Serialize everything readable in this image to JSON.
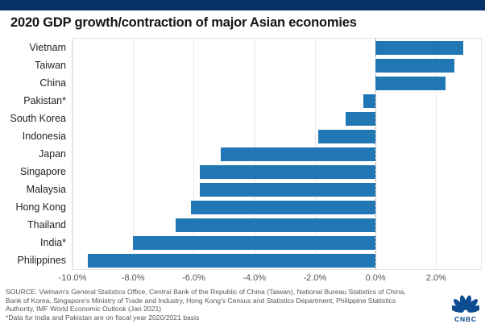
{
  "banner": {
    "color": "#053166"
  },
  "header": {
    "title": "2020 GDP growth/contraction of major Asian economies"
  },
  "chart_data": {
    "type": "bar",
    "orientation": "horizontal",
    "title": "2020 GDP growth/contraction of major Asian economies",
    "categories": [
      "Vietnam",
      "Taiwan",
      "China",
      "Pakistan*",
      "South Korea",
      "Indonesia",
      "Japan",
      "Singapore",
      "Malaysia",
      "Hong Kong",
      "Thailand",
      "India*",
      "Philippines"
    ],
    "values": [
      2.9,
      2.6,
      2.3,
      -0.4,
      -1.0,
      -1.9,
      -5.1,
      -5.8,
      -5.8,
      -6.1,
      -6.6,
      -8.0,
      -9.5
    ],
    "unit": "%",
    "xlabel": "",
    "ylabel": "",
    "xlim": [
      -10.0,
      3.48
    ],
    "grid": true,
    "bar_color": "#2177b4",
    "x_ticks": [
      {
        "value": -10,
        "label": "-10.0%"
      },
      {
        "value": -8,
        "label": "-8.0%"
      },
      {
        "value": -6,
        "label": "-6.0%"
      },
      {
        "value": -4,
        "label": "-4.0%"
      },
      {
        "value": -2,
        "label": "-2.0%"
      },
      {
        "value": 0,
        "label": "0.0%"
      },
      {
        "value": 2,
        "label": "2.0%"
      }
    ]
  },
  "footer": {
    "source_lines": [
      "SOURCE: Vietnam's General Statistics Office, Central Bank of the Republic of China (Taiwan), National Bureau Statistics of China,",
      "Bank of Korea, Singapore's Ministry of Trade and Industry, Hong Kong's Census and Statistics Department, Philippine Statistics",
      "Authority, IMF World Economic Outlook (Jan 2021)"
    ],
    "footnote": "*Data for India and Pakistan are on fiscal year 2020/2021 basis",
    "logo_text": "CNBC",
    "logo_color": "#0e4c92"
  }
}
